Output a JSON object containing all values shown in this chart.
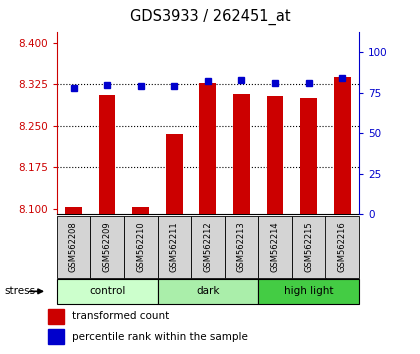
{
  "title": "GDS3933 / 262451_at",
  "samples": [
    "GSM562208",
    "GSM562209",
    "GSM562210",
    "GSM562211",
    "GSM562212",
    "GSM562213",
    "GSM562214",
    "GSM562215",
    "GSM562216"
  ],
  "red_values": [
    8.103,
    8.305,
    8.103,
    8.235,
    8.328,
    8.308,
    8.303,
    8.3,
    8.338
  ],
  "blue_values": [
    78,
    80,
    79,
    79,
    82,
    83,
    81,
    81,
    84
  ],
  "groups": [
    {
      "label": "control",
      "indices": [
        0,
        1,
        2
      ],
      "color": "#ccffcc"
    },
    {
      "label": "dark",
      "indices": [
        3,
        4,
        5
      ],
      "color": "#aaeeaa"
    },
    {
      "label": "high light",
      "indices": [
        6,
        7,
        8
      ],
      "color": "#44cc44"
    }
  ],
  "ylim_left": [
    8.09,
    8.42
  ],
  "ylim_right": [
    0,
    112.5
  ],
  "yticks_left": [
    8.1,
    8.175,
    8.25,
    8.325,
    8.4
  ],
  "yticks_right": [
    0,
    25,
    50,
    75,
    100
  ],
  "gridlines": [
    8.175,
    8.25,
    8.325
  ],
  "bar_color": "#cc0000",
  "dot_color": "#0000cc",
  "bar_width": 0.5,
  "bg_color": "#ffffff",
  "left_tick_color": "#cc0000",
  "right_tick_color": "#0000cc",
  "bar_bottom": 8.09
}
